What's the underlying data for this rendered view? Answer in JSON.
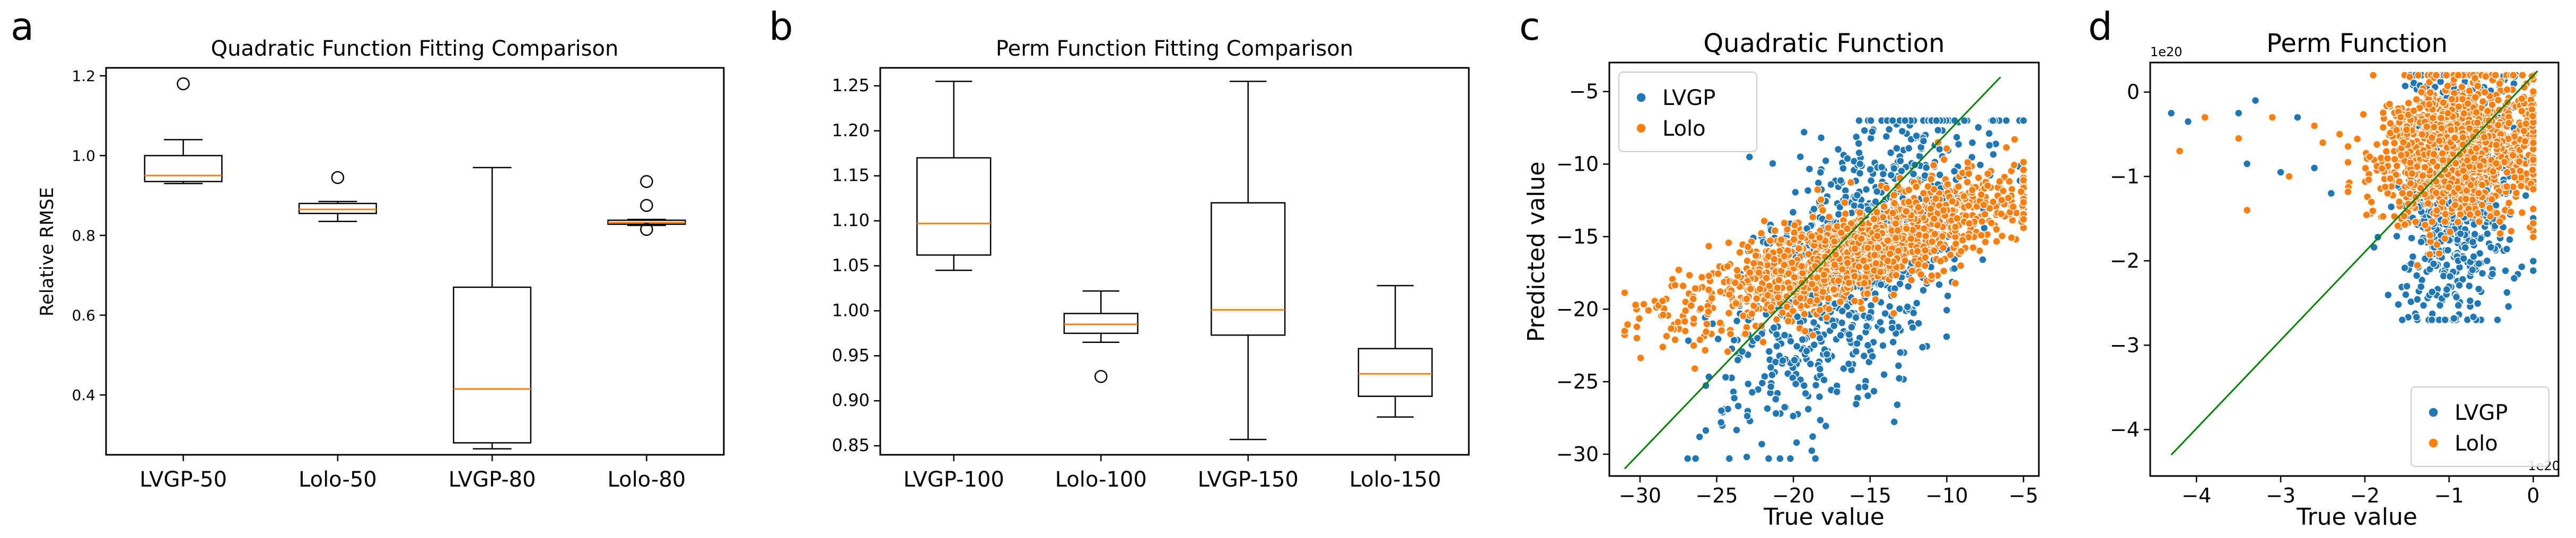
{
  "colors": {
    "median": "#ff7f0e",
    "lvgp": "#1f77b4",
    "lolo": "#ff7f0e",
    "fit_line": "#008000",
    "box": "#000000"
  },
  "chart_data": [
    {
      "id": "a",
      "panel_label": "a",
      "type": "box",
      "title": "Quadratic Function Fitting Comparison",
      "xlabel": "",
      "ylabel": "Relative RMSE",
      "ylim": [
        0.25,
        1.22
      ],
      "yticks": [
        0.4,
        0.6,
        0.8,
        1.0,
        1.2
      ],
      "ytick_labels": [
        "0.4",
        "0.6",
        "0.8",
        "1.0",
        "1.2"
      ],
      "categories": [
        "LVGP-50",
        "Lolo-50",
        "LVGP-80",
        "Lolo-80"
      ],
      "boxes": [
        {
          "name": "LVGP-50",
          "whislo": 0.93,
          "q1": 0.935,
          "med": 0.95,
          "q3": 1.0,
          "whishi": 1.04,
          "fliers": [
            1.18
          ]
        },
        {
          "name": "Lolo-50",
          "whislo": 0.835,
          "q1": 0.855,
          "med": 0.865,
          "q3": 0.88,
          "whishi": 0.885,
          "fliers": [
            0.945
          ]
        },
        {
          "name": "LVGP-80",
          "whislo": 0.265,
          "q1": 0.28,
          "med": 0.415,
          "q3": 0.67,
          "whishi": 0.97,
          "fliers": []
        },
        {
          "name": "Lolo-80",
          "whislo": 0.825,
          "q1": 0.828,
          "med": 0.832,
          "q3": 0.838,
          "whishi": 0.84,
          "fliers": [
            0.815,
            0.875,
            0.935
          ]
        }
      ]
    },
    {
      "id": "b",
      "panel_label": "b",
      "type": "box",
      "title": "Perm Function Fitting Comparison",
      "xlabel": "",
      "ylabel": "",
      "ylim": [
        0.84,
        1.27
      ],
      "yticks": [
        0.85,
        0.9,
        0.95,
        1.0,
        1.05,
        1.1,
        1.15,
        1.2,
        1.25
      ],
      "ytick_labels": [
        "0.85",
        "0.90",
        "0.95",
        "1.00",
        "1.05",
        "1.10",
        "1.15",
        "1.20",
        "1.25"
      ],
      "categories": [
        "LVGP-100",
        "Lolo-100",
        "LVGP-150",
        "Lolo-150"
      ],
      "boxes": [
        {
          "name": "LVGP-100",
          "whislo": 1.045,
          "q1": 1.062,
          "med": 1.097,
          "q3": 1.17,
          "whishi": 1.255,
          "fliers": []
        },
        {
          "name": "Lolo-100",
          "whislo": 0.965,
          "q1": 0.975,
          "med": 0.985,
          "q3": 0.997,
          "whishi": 1.022,
          "fliers": [
            0.927
          ]
        },
        {
          "name": "LVGP-150",
          "whislo": 0.857,
          "q1": 0.973,
          "med": 1.001,
          "q3": 1.12,
          "whishi": 1.255,
          "fliers": []
        },
        {
          "name": "Lolo-150",
          "whislo": 0.882,
          "q1": 0.905,
          "med": 0.93,
          "q3": 0.958,
          "whishi": 1.028,
          "fliers": []
        }
      ]
    },
    {
      "id": "c",
      "panel_label": "c",
      "type": "scatter",
      "title": "Quadratic Function",
      "xlabel": "True value",
      "ylabel": "Predicted value",
      "xlim": [
        -32,
        -4
      ],
      "ylim": [
        -31.5,
        -3
      ],
      "xticks": [
        -30,
        -25,
        -20,
        -15,
        -10,
        -5
      ],
      "xtick_labels": [
        "−30",
        "−25",
        "−20",
        "−15",
        "−10",
        "−5"
      ],
      "yticks": [
        -30,
        -25,
        -20,
        -15,
        -10,
        -5
      ],
      "ytick_labels": [
        "−30",
        "−25",
        "−20",
        "−15",
        "−10",
        "−5"
      ],
      "exponent_label": "",
      "x_exponent_label": "",
      "legend": {
        "position": "upper-left",
        "entries": [
          "LVGP",
          "Lolo"
        ]
      },
      "identity_line": [
        [
          -31,
          -31
        ],
        [
          -6.5,
          -4
        ]
      ],
      "sampler": {
        "n": [
          900,
          1300
        ],
        "seed": [
          11,
          23
        ],
        "x_range": [
          -31,
          -5
        ],
        "x_center": -16,
        "x_spread": 7,
        "trend": [
          [
            0.9,
            -2
          ],
          [
            0.35,
            -10.5
          ]
        ],
        "noise": [
          4.5,
          1.6
        ],
        "clip": [
          -30.3,
          -7
        ]
      }
    },
    {
      "id": "d",
      "panel_label": "d",
      "type": "scatter",
      "title": "Perm Function",
      "xlabel": "True value",
      "ylabel": "",
      "xlim": [
        -4.55,
        0.3
      ],
      "ylim": [
        -4.55,
        0.35
      ],
      "xticks": [
        -4,
        -3,
        -2,
        -1,
        0
      ],
      "xtick_labels": [
        "−4",
        "−3",
        "−2",
        "−1",
        "0"
      ],
      "yticks": [
        -4,
        -3,
        -2,
        -1,
        0
      ],
      "ytick_labels": [
        "−4",
        "−3",
        "−2",
        "−1",
        "0"
      ],
      "exponent_label": "1e20",
      "x_exponent_label": "1e20",
      "legend": {
        "position": "lower-right",
        "entries": [
          "LVGP",
          "Lolo"
        ]
      },
      "identity_line": [
        [
          -4.3,
          -4.3
        ],
        [
          0.05,
          0.25
        ]
      ],
      "sampler": {
        "n": [
          800,
          1300
        ],
        "seed": [
          7,
          29
        ],
        "x_range": [
          -2.2,
          0
        ],
        "x_center": -0.9,
        "x_spread": 0.6,
        "trend": [
          [
            0.25,
            -0.9
          ],
          [
            0.1,
            -0.6
          ]
        ],
        "noise": [
          0.8,
          0.4
        ],
        "clip": [
          -2.7,
          0.2
        ],
        "outliers": [
          [
            -4.3,
            -0.25
          ],
          [
            -4.2,
            -0.7
          ],
          [
            -4.1,
            -0.35
          ],
          [
            -3.9,
            -0.3
          ],
          [
            -3.5,
            -0.25
          ],
          [
            -3.5,
            -0.55
          ],
          [
            -3.4,
            -0.85
          ],
          [
            -3.4,
            -1.4
          ],
          [
            -3.3,
            -0.1
          ],
          [
            -3.1,
            -0.3
          ],
          [
            -3.0,
            -0.95
          ],
          [
            -2.9,
            -1.0
          ],
          [
            -2.8,
            -0.3
          ],
          [
            -2.6,
            -0.4
          ],
          [
            -2.6,
            -0.9
          ],
          [
            -2.5,
            -0.6
          ],
          [
            -2.4,
            -1.2
          ],
          [
            -2.3,
            -0.5
          ]
        ]
      }
    }
  ]
}
